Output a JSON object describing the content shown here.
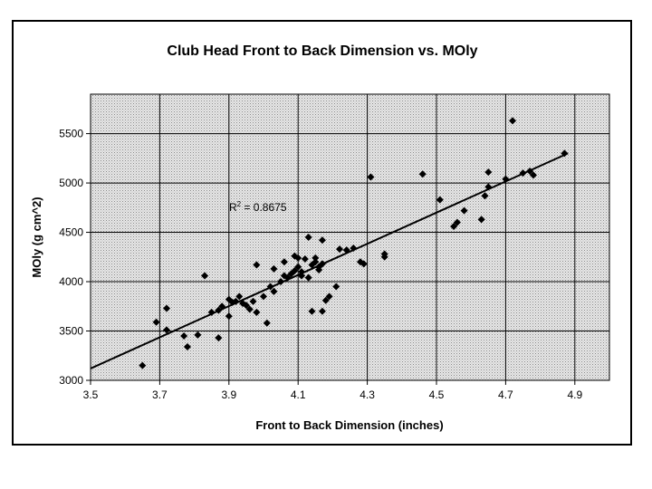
{
  "chart_data": {
    "type": "scatter",
    "title": "Club Head Front to Back Dimension vs. MOly",
    "xlabel": "Front to Back Dimension (inches)",
    "ylabel": "MOly (g cm^2)",
    "xlim": [
      3.5,
      5.0
    ],
    "ylim": [
      3000,
      5900
    ],
    "x_ticks": [
      "3.5",
      "3.7",
      "3.9",
      "4.1",
      "4.3",
      "4.5",
      "4.7",
      "4.9"
    ],
    "y_ticks": [
      "3000",
      "3500",
      "4000",
      "4500",
      "5000",
      "5500"
    ],
    "grid": true,
    "legend": "none",
    "trendline": {
      "type": "linear",
      "x": [
        3.5,
        4.88
      ],
      "y": [
        3120,
        5300
      ],
      "r2_label": "R",
      "r2_sup": "2",
      "r2_value": " = 0.8675"
    },
    "points": [
      [
        3.65,
        3150
      ],
      [
        3.69,
        3590
      ],
      [
        3.72,
        3730
      ],
      [
        3.72,
        3510
      ],
      [
        3.77,
        3450
      ],
      [
        3.78,
        3340
      ],
      [
        3.81,
        3460
      ],
      [
        3.83,
        4060
      ],
      [
        3.85,
        3690
      ],
      [
        3.87,
        3430
      ],
      [
        3.87,
        3710
      ],
      [
        3.88,
        3750
      ],
      [
        3.9,
        3650
      ],
      [
        3.9,
        3820
      ],
      [
        3.91,
        3790
      ],
      [
        3.92,
        3800
      ],
      [
        3.93,
        3850
      ],
      [
        3.94,
        3780
      ],
      [
        3.95,
        3760
      ],
      [
        3.96,
        3720
      ],
      [
        3.97,
        3800
      ],
      [
        3.98,
        4170
      ],
      [
        3.98,
        3690
      ],
      [
        4.0,
        3850
      ],
      [
        4.01,
        3580
      ],
      [
        4.02,
        3950
      ],
      [
        4.03,
        4130
      ],
      [
        4.03,
        3900
      ],
      [
        4.05,
        4000
      ],
      [
        4.06,
        4060
      ],
      [
        4.06,
        4200
      ],
      [
        4.07,
        4040
      ],
      [
        4.08,
        4080
      ],
      [
        4.09,
        4260
      ],
      [
        4.09,
        4110
      ],
      [
        4.1,
        4150
      ],
      [
        4.1,
        4240
      ],
      [
        4.11,
        4060
      ],
      [
        4.11,
        4100
      ],
      [
        4.12,
        4230
      ],
      [
        4.13,
        4040
      ],
      [
        4.13,
        4450
      ],
      [
        4.14,
        4170
      ],
      [
        4.14,
        3700
      ],
      [
        4.15,
        4240
      ],
      [
        4.15,
        4200
      ],
      [
        4.16,
        4150
      ],
      [
        4.16,
        4120
      ],
      [
        4.17,
        4420
      ],
      [
        4.17,
        4180
      ],
      [
        4.17,
        3700
      ],
      [
        4.18,
        3810
      ],
      [
        4.19,
        3850
      ],
      [
        4.21,
        3950
      ],
      [
        4.22,
        4330
      ],
      [
        4.24,
        4320
      ],
      [
        4.26,
        4340
      ],
      [
        4.28,
        4200
      ],
      [
        4.29,
        4180
      ],
      [
        4.31,
        5060
      ],
      [
        4.35,
        4280
      ],
      [
        4.35,
        4250
      ],
      [
        4.46,
        5090
      ],
      [
        4.51,
        4830
      ],
      [
        4.55,
        4560
      ],
      [
        4.56,
        4600
      ],
      [
        4.58,
        4720
      ],
      [
        4.63,
        4630
      ],
      [
        4.64,
        4870
      ],
      [
        4.65,
        5110
      ],
      [
        4.65,
        4960
      ],
      [
        4.7,
        5040
      ],
      [
        4.72,
        5630
      ],
      [
        4.75,
        5100
      ],
      [
        4.77,
        5120
      ],
      [
        4.78,
        5080
      ],
      [
        4.87,
        5300
      ]
    ]
  }
}
